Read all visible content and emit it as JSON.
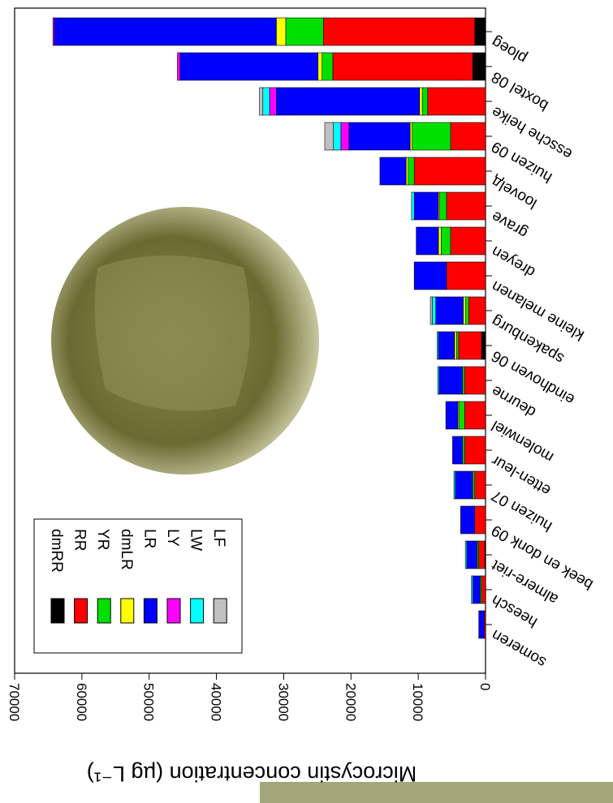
{
  "chart_data": {
    "type": "stacked-bar",
    "y_label": "Microcystin concentration (µg L⁻¹)",
    "categories": [
      "someren",
      "heesch",
      "almere-riet",
      "beek en donk 09",
      "huizen 07",
      "etten-leur",
      "molenwiel",
      "deurne",
      "eindhoven 06",
      "spakenburg",
      "kleine melanen",
      "dreyen",
      "grave",
      "loovelд",
      "huizen 09",
      "essche heike",
      "boxtel 08",
      "ploeg"
    ],
    "series": [
      {
        "name": "dmRR",
        "color": "#000000",
        "values": [
          0,
          0,
          100,
          0,
          0,
          0,
          0,
          0,
          600,
          0,
          0,
          0,
          0,
          0,
          0,
          0,
          1900,
          1600
        ]
      },
      {
        "name": "RR",
        "color": "#ff0000",
        "values": [
          200,
          600,
          900,
          1600,
          1600,
          3100,
          3100,
          3100,
          3400,
          2500,
          5800,
          5200,
          5800,
          10600,
          5200,
          8600,
          20800,
          22500
        ]
      },
      {
        "name": "YR",
        "color": "#00e000",
        "values": [
          0,
          200,
          200,
          0,
          300,
          300,
          800,
          300,
          300,
          500,
          0,
          1400,
          1000,
          900,
          5700,
          800,
          1600,
          5600
        ]
      },
      {
        "name": "dmLR",
        "color": "#ffff00",
        "values": [
          0,
          0,
          100,
          0,
          0,
          0,
          200,
          0,
          300,
          300,
          0,
          400,
          200,
          300,
          300,
          400,
          600,
          1400
        ]
      },
      {
        "name": "LR",
        "color": "#0000ff",
        "values": [
          800,
          1100,
          1500,
          2100,
          2600,
          1500,
          1800,
          3500,
          2400,
          4100,
          4800,
          3300,
          3600,
          3900,
          9100,
          21300,
          20500,
          33000
        ]
      },
      {
        "name": "LY",
        "color": "#ff00ff",
        "values": [
          0,
          0,
          0,
          0,
          0,
          0,
          0,
          0,
          0,
          0,
          0,
          0,
          0,
          0,
          1200,
          1000,
          400,
          200
        ]
      },
      {
        "name": "LW",
        "color": "#00ffff",
        "values": [
          0,
          200,
          200,
          0,
          200,
          0,
          0,
          200,
          200,
          500,
          0,
          0,
          400,
          0,
          1100,
          1000,
          0,
          0
        ]
      },
      {
        "name": "LF",
        "color": "#c0c0c0",
        "values": [
          0,
          0,
          0,
          0,
          0,
          0,
          0,
          0,
          0,
          300,
          0,
          0,
          0,
          0,
          1300,
          500,
          0,
          0
        ]
      }
    ],
    "ylim": [
      0,
      70000
    ],
    "yticks": [
      0,
      10000,
      20000,
      30000,
      40000,
      50000,
      60000,
      70000
    ]
  }
}
